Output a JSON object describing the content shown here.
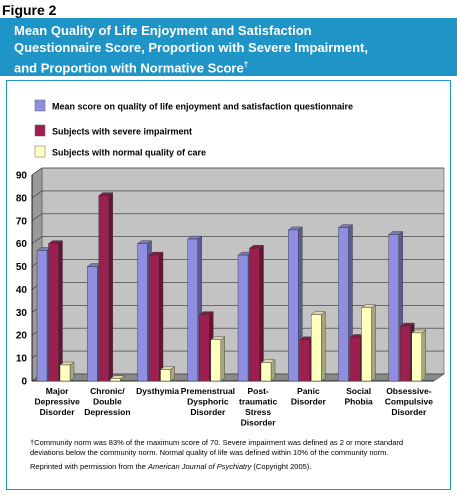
{
  "figure_label": "Figure 2",
  "title_lines": [
    "Mean Quality of Life Enjoyment and Satisfaction",
    "Questionnaire Score, Proportion with Severe Impairment,",
    "and Proportion with Normative Score"
  ],
  "title_dagger": "†",
  "colors": {
    "title_bg": "#1f95c7",
    "plot_bg": "#c3c3c3",
    "series": [
      "#8f8ee0",
      "#9b2050",
      "#ffffc0"
    ]
  },
  "chart_data": {
    "type": "bar",
    "categories": [
      [
        "Major",
        "Depressive",
        "Disorder"
      ],
      [
        "Chronic/",
        "Double",
        "Depression"
      ],
      [
        "Dysthymia"
      ],
      [
        "Premenstrual",
        "Dysphoric",
        "Disorder"
      ],
      [
        "Post-",
        "traumatic",
        "Stress",
        "Disorder"
      ],
      [
        "Panic",
        "Disorder"
      ],
      [
        "Social",
        "Phobia"
      ],
      [
        "Obsessive-",
        "Compulsive",
        "Disorder"
      ]
    ],
    "series": [
      {
        "name": "Mean score on quality of life enjoyment and satisfaction questionnaire",
        "values": [
          57,
          50,
          60,
          62,
          55,
          66,
          67,
          64
        ]
      },
      {
        "name": "Subjects with severe impairment",
        "values": [
          60,
          81,
          55,
          29,
          58,
          18,
          19,
          24
        ]
      },
      {
        "name": "Subjects with normal quality of care",
        "values": [
          7,
          1,
          5,
          18,
          8,
          29,
          32,
          21
        ]
      }
    ],
    "ylim": [
      0,
      90
    ],
    "yticks": [
      0,
      10,
      20,
      30,
      40,
      50,
      60,
      70,
      80,
      90
    ],
    "grid": true,
    "legend_position": "top"
  },
  "footnote": {
    "line1": "†Community norm was 83% of the maximum score of 70. Severe impairment was defined as 2 or more standard",
    "line2": "deviations below the community norm. Normal quality of life was defined within 10% of the community norm.",
    "reprint_prefix": "Reprinted with permission from the ",
    "reprint_journal": "American Journal of Psychiatry",
    "reprint_suffix": " (Copyright 2005)."
  }
}
